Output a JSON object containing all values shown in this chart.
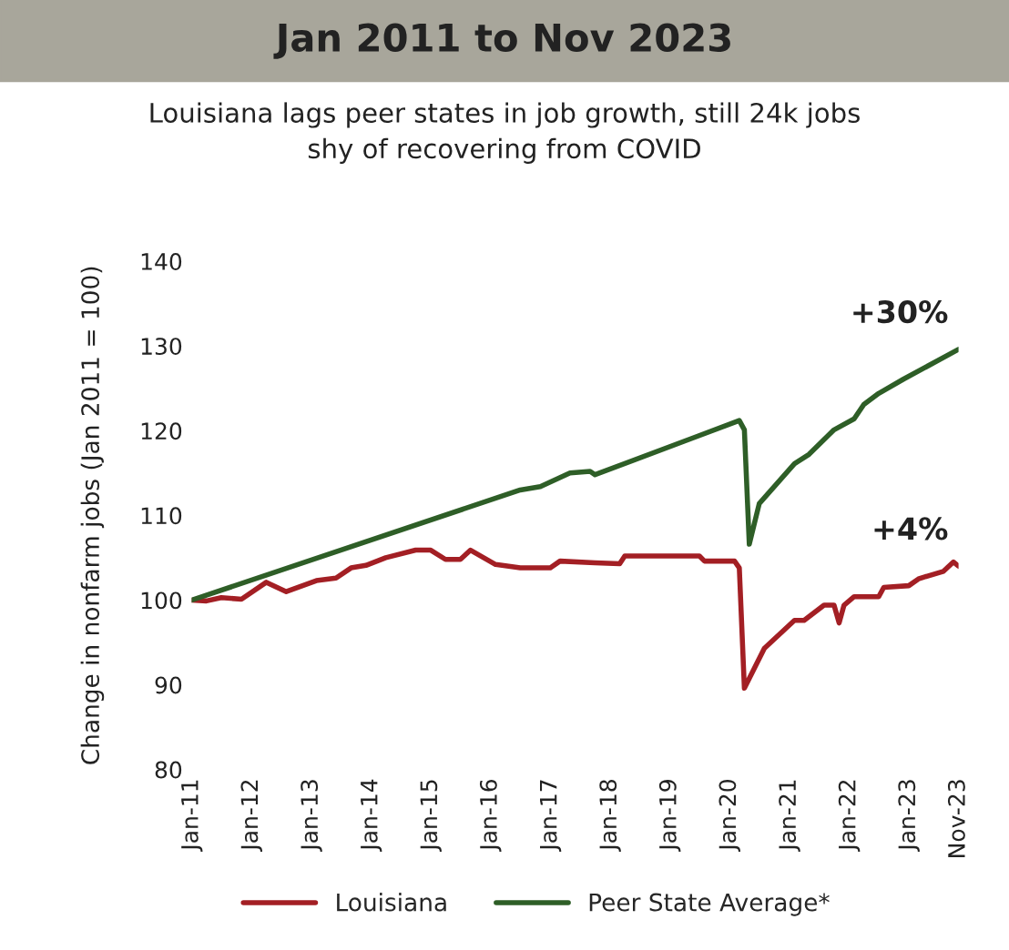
{
  "chart_data": {
    "type": "line",
    "title": "Jan 2011 to Nov 2023",
    "subtitle": "Louisiana lags peer states in job growth, still 24k jobs\nshy of recovering from COVID",
    "ylabel": "Change in nonfarm jobs (Jan 2011 = 100)",
    "ylim": [
      80,
      140
    ],
    "yticks": [
      80,
      90,
      100,
      110,
      120,
      130,
      140
    ],
    "xlim": [
      "2011-01",
      "2023-11"
    ],
    "xticks": [
      {
        "value": "2011-01",
        "label": "Jan-11"
      },
      {
        "value": "2012-01",
        "label": "Jan-12"
      },
      {
        "value": "2013-01",
        "label": "Jan-13"
      },
      {
        "value": "2014-01",
        "label": "Jan-14"
      },
      {
        "value": "2015-01",
        "label": "Jan-15"
      },
      {
        "value": "2016-01",
        "label": "Jan-16"
      },
      {
        "value": "2017-01",
        "label": "Jan-17"
      },
      {
        "value": "2018-01",
        "label": "Jan-18"
      },
      {
        "value": "2019-01",
        "label": "Jan-19"
      },
      {
        "value": "2020-01",
        "label": "Jan-20"
      },
      {
        "value": "2021-01",
        "label": "Jan-21"
      },
      {
        "value": "2022-01",
        "label": "Jan-22"
      },
      {
        "value": "2023-01",
        "label": "Jan-23"
      },
      {
        "value": "2023-11",
        "label": "Nov-23"
      }
    ],
    "grid": false,
    "legend": "bottom",
    "marker": "none",
    "line_style": "solid",
    "series": [
      {
        "name": "Louisiana",
        "color": "#a31f24",
        "x": [
          "2011-01",
          "2011-04",
          "2011-07",
          "2011-11",
          "2012-04",
          "2012-08",
          "2013-02",
          "2013-06",
          "2013-09",
          "2013-12",
          "2014-04",
          "2014-10",
          "2015-01",
          "2015-04",
          "2015-07",
          "2015-09",
          "2016-02",
          "2016-07",
          "2017-01",
          "2017-03",
          "2017-10",
          "2018-03",
          "2018-04",
          "2019-07",
          "2019-08",
          "2020-02",
          "2020-03",
          "2020-04",
          "2020-08",
          "2021-02",
          "2021-04",
          "2021-08",
          "2021-10",
          "2021-11",
          "2021-12",
          "2022-02",
          "2022-07",
          "2022-08",
          "2023-01",
          "2023-03",
          "2023-04",
          "2023-08",
          "2023-10",
          "2023-11"
        ],
        "values": [
          100,
          99.9,
          100.3,
          100.1,
          102.1,
          101,
          102.3,
          102.6,
          103.8,
          104.1,
          105,
          105.9,
          105.9,
          104.8,
          104.8,
          105.9,
          104.2,
          103.8,
          103.8,
          104.6,
          104.4,
          104.3,
          105.2,
          105.2,
          104.6,
          104.6,
          103.8,
          89.6,
          94.3,
          97.6,
          97.6,
          99.4,
          99.4,
          97.3,
          99.4,
          100.4,
          100.4,
          101.5,
          101.7,
          102.5,
          102.7,
          103.4,
          104.5,
          104
        ]
      },
      {
        "name": "Peer State Average*",
        "color": "#2e5e27",
        "x": [
          "2011-01",
          "2016-07",
          "2016-11",
          "2017-05",
          "2017-09",
          "2017-10",
          "2020-03",
          "2020-04",
          "2020-05",
          "2020-07",
          "2021-02",
          "2021-05",
          "2021-10",
          "2022-02",
          "2022-04",
          "2022-07",
          "2022-12",
          "2023-11"
        ],
        "values": [
          100,
          113,
          113.4,
          115,
          115.2,
          114.8,
          121.2,
          120.1,
          106.6,
          111.4,
          116.1,
          117.2,
          120.1,
          121.4,
          123.1,
          124.4,
          126.1,
          129.6
        ]
      }
    ],
    "annotations": [
      {
        "text": "+30%",
        "x": "2023-11",
        "y": 129.6
      },
      {
        "text": "+4%",
        "x": "2023-11",
        "y": 104
      }
    ]
  }
}
